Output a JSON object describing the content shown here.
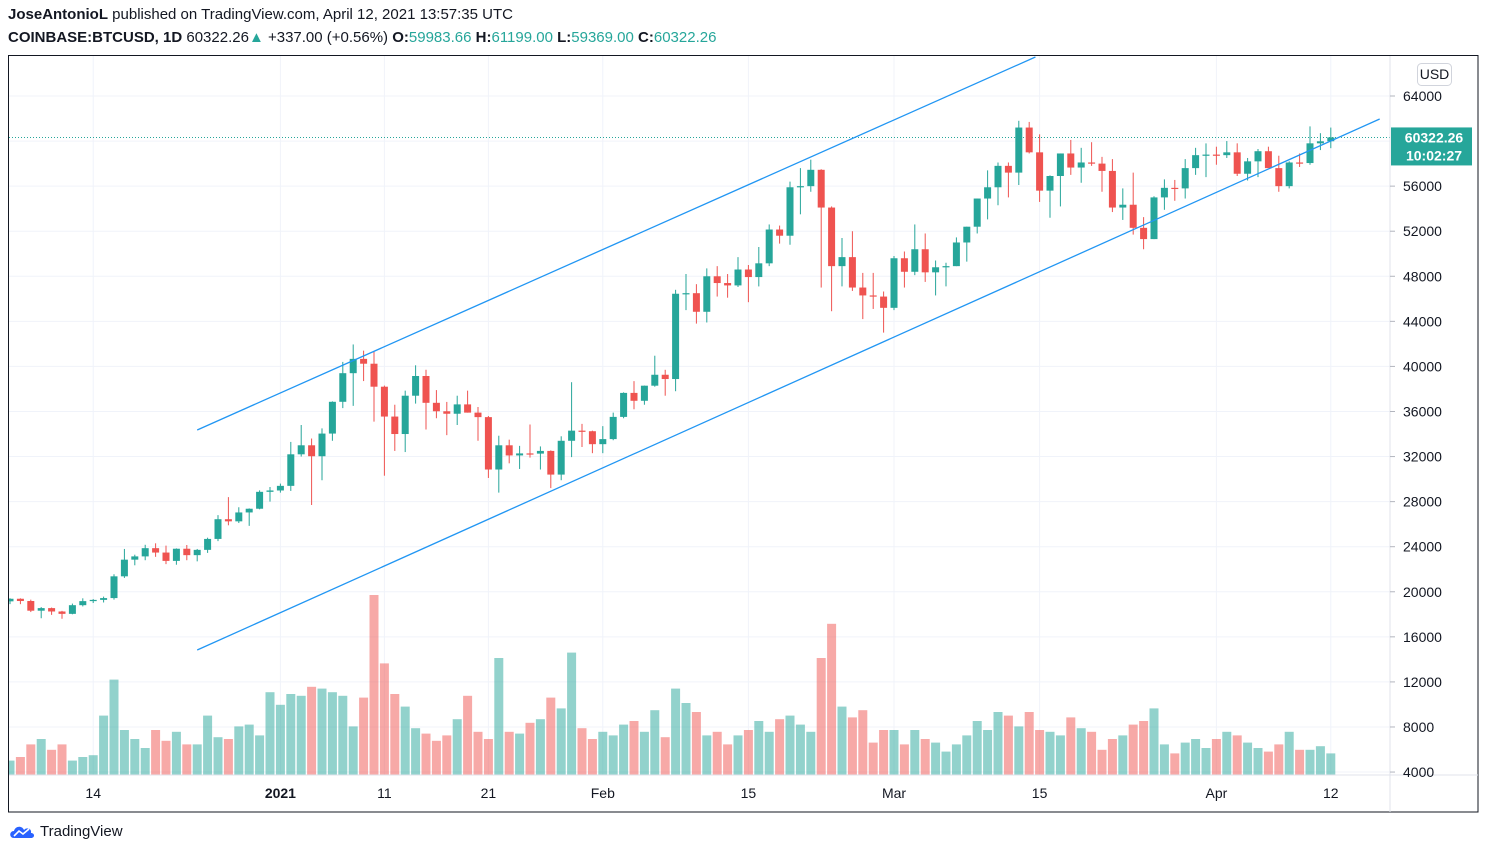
{
  "header": {
    "author": "JoseAntonioL",
    "published_text": "published on TradingView.com, April 12, 2021 13:57:35 UTC",
    "symbol": "COINBASE:BTCUSD, 1D",
    "last": "60322.26",
    "change": "+337.00 (+0.56%)",
    "o_label": "O:",
    "o": "59983.66",
    "h_label": "H:",
    "h": "61199.00",
    "l_label": "L:",
    "l": "59369.00",
    "c_label": "C:",
    "c": "60322.26"
  },
  "price_axis": {
    "currency": "USD",
    "last_price": "60322.26",
    "countdown": "10:02:27"
  },
  "logo": {
    "text": "TradingView"
  },
  "colors": {
    "up": "#26a69a",
    "down": "#ef5350",
    "trendline": "#2196f3",
    "volume_up": "#26a69a",
    "volume_down": "#ef5350"
  },
  "chart_data": {
    "type": "candlestick",
    "interval": "1D",
    "start_date": "2020-12-06",
    "ylim": [
      4000,
      66000
    ],
    "grid": true,
    "y_ticks": [
      "64000",
      "56000",
      "52000",
      "48000",
      "44000",
      "40000",
      "36000",
      "32000",
      "28000",
      "24000",
      "20000",
      "16000",
      "12000",
      "8000",
      "4000"
    ],
    "x_ticks": [
      {
        "label": "14",
        "date": "2020-12-14",
        "bold": false
      },
      {
        "label": "2021",
        "date": "2021-01-01",
        "bold": true
      },
      {
        "label": "11",
        "date": "2021-01-11",
        "bold": false
      },
      {
        "label": "21",
        "date": "2021-01-21",
        "bold": false
      },
      {
        "label": "Feb",
        "date": "2021-02-01",
        "bold": false
      },
      {
        "label": "15",
        "date": "2021-02-15",
        "bold": false
      },
      {
        "label": "Mar",
        "date": "2021-03-01",
        "bold": false
      },
      {
        "label": "15",
        "date": "2021-03-15",
        "bold": false
      },
      {
        "label": "Apr",
        "date": "2021-04-01",
        "bold": false
      },
      {
        "label": "12",
        "date": "2021-04-12",
        "bold": false
      }
    ],
    "last_price": 60322.26,
    "trendlines": [
      {
        "from": {
          "date": "2020-12-24",
          "price": 34360
        },
        "to": {
          "date": "2021-03-14.6",
          "price": 67460
        }
      },
      {
        "from": {
          "date": "2020-12-24",
          "price": 14830
        },
        "to": {
          "date": "2021-04-16.7",
          "price": 61960
        }
      }
    ],
    "ohlc": [
      [
        19150,
        19420,
        18900,
        19380
      ],
      [
        19380,
        19420,
        18900,
        19180
      ],
      [
        19180,
        19300,
        18200,
        18320
      ],
      [
        18320,
        18640,
        17650,
        18550
      ],
      [
        18550,
        18600,
        17950,
        18250
      ],
      [
        18250,
        18300,
        17600,
        18040
      ],
      [
        18040,
        18950,
        18000,
        18810
      ],
      [
        18810,
        19420,
        18700,
        19170
      ],
      [
        19170,
        19350,
        19000,
        19280
      ],
      [
        19280,
        19570,
        19050,
        19440
      ],
      [
        19440,
        21560,
        19300,
        21370
      ],
      [
        21370,
        23800,
        21230,
        22850
      ],
      [
        22850,
        23290,
        22350,
        23140
      ],
      [
        23140,
        24170,
        22800,
        23870
      ],
      [
        23870,
        24300,
        23100,
        23480
      ],
      [
        23480,
        24100,
        22450,
        22740
      ],
      [
        22740,
        23850,
        22400,
        23820
      ],
      [
        23820,
        24150,
        22800,
        23250
      ],
      [
        23250,
        23800,
        22700,
        23720
      ],
      [
        23720,
        24800,
        23450,
        24690
      ],
      [
        24690,
        26800,
        24500,
        26440
      ],
      [
        26440,
        28400,
        25900,
        26250
      ],
      [
        26250,
        27500,
        26100,
        27040
      ],
      [
        27040,
        27400,
        25850,
        27370
      ],
      [
        27370,
        29000,
        27320,
        28870
      ],
      [
        28870,
        29300,
        28000,
        28990
      ],
      [
        28990,
        29600,
        28800,
        29400
      ],
      [
        29400,
        33300,
        28950,
        32200
      ],
      [
        32200,
        34800,
        32000,
        33000
      ],
      [
        33000,
        33600,
        27700,
        32030
      ],
      [
        32030,
        34500,
        29900,
        34040
      ],
      [
        34040,
        36900,
        33400,
        36860
      ],
      [
        36860,
        40400,
        36300,
        39400
      ],
      [
        39400,
        41950,
        36500,
        40670
      ],
      [
        40670,
        41400,
        38700,
        40240
      ],
      [
        40240,
        41350,
        35100,
        38200
      ],
      [
        38200,
        38300,
        30300,
        35550
      ],
      [
        35550,
        36600,
        32500,
        34000
      ],
      [
        34000,
        37850,
        32400,
        37400
      ],
      [
        37400,
        40100,
        36700,
        39150
      ],
      [
        39150,
        39700,
        34400,
        36770
      ],
      [
        36770,
        37900,
        35400,
        36020
      ],
      [
        36020,
        36850,
        33900,
        35800
      ],
      [
        35800,
        37400,
        34800,
        36630
      ],
      [
        36630,
        37850,
        35900,
        35900
      ],
      [
        35900,
        36400,
        33400,
        35500
      ],
      [
        35500,
        35600,
        30100,
        30850
      ],
      [
        30850,
        33850,
        28800,
        33000
      ],
      [
        33000,
        33500,
        31400,
        32100
      ],
      [
        32100,
        32950,
        30900,
        32280
      ],
      [
        32280,
        34850,
        31900,
        32260
      ],
      [
        32260,
        32900,
        30850,
        32500
      ],
      [
        32500,
        32550,
        29200,
        30400
      ],
      [
        30400,
        33800,
        29900,
        33400
      ],
      [
        33400,
        38600,
        31950,
        34300
      ],
      [
        34300,
        34900,
        32850,
        34250
      ],
      [
        34250,
        34300,
        32300,
        33100
      ],
      [
        33100,
        34700,
        32300,
        33550
      ],
      [
        33550,
        35900,
        33450,
        35520
      ],
      [
        35520,
        37700,
        35400,
        37650
      ],
      [
        37650,
        38700,
        36200,
        36950
      ],
      [
        36950,
        38300,
        36600,
        38290
      ],
      [
        38290,
        40950,
        38200,
        39260
      ],
      [
        39260,
        39700,
        37400,
        38880
      ],
      [
        38880,
        46800,
        37800,
        46450
      ],
      [
        46450,
        48200,
        45000,
        46500
      ],
      [
        46500,
        47300,
        43800,
        44850
      ],
      [
        44850,
        48700,
        43900,
        48000
      ],
      [
        48000,
        48900,
        46200,
        47400
      ],
      [
        47400,
        48200,
        46100,
        47190
      ],
      [
        47190,
        49700,
        47050,
        48600
      ],
      [
        48600,
        49000,
        45700,
        47930
      ],
      [
        47930,
        50600,
        47100,
        49150
      ],
      [
        49150,
        52600,
        48900,
        52150
      ],
      [
        52150,
        52500,
        50900,
        51600
      ],
      [
        51600,
        56400,
        50800,
        55900
      ],
      [
        55900,
        57600,
        53500,
        56000
      ],
      [
        56000,
        58350,
        55500,
        57450
      ],
      [
        57450,
        57500,
        47000,
        54100
      ],
      [
        54100,
        54200,
        44900,
        48900
      ],
      [
        48900,
        51400,
        47100,
        49700
      ],
      [
        49700,
        52000,
        46700,
        47000
      ],
      [
        47000,
        48300,
        44200,
        46300
      ],
      [
        46300,
        48300,
        45100,
        46200
      ],
      [
        46200,
        46650,
        43000,
        45200
      ],
      [
        45200,
        49800,
        45000,
        49600
      ],
      [
        49600,
        50200,
        47000,
        48400
      ],
      [
        48400,
        52600,
        48100,
        50400
      ],
      [
        50400,
        51800,
        47500,
        48350
      ],
      [
        48350,
        49400,
        46300,
        48800
      ],
      [
        48800,
        49200,
        47100,
        48900
      ],
      [
        48900,
        51450,
        48900,
        51000
      ],
      [
        51000,
        52400,
        49300,
        52400
      ],
      [
        52400,
        54900,
        51800,
        54900
      ],
      [
        54900,
        57400,
        53050,
        55900
      ],
      [
        55900,
        58100,
        54300,
        57800
      ],
      [
        57800,
        58100,
        55000,
        57200
      ],
      [
        57200,
        61800,
        56100,
        61200
      ],
      [
        61200,
        61700,
        58900,
        59000
      ],
      [
        59000,
        60600,
        54600,
        55600
      ],
      [
        55600,
        56950,
        53200,
        56900
      ],
      [
        56900,
        58900,
        54200,
        58900
      ],
      [
        58900,
        60100,
        57000,
        57650
      ],
      [
        57650,
        59400,
        56300,
        58100
      ],
      [
        58100,
        59900,
        57800,
        58000
      ],
      [
        58000,
        58600,
        55500,
        57350
      ],
      [
        57350,
        58400,
        53700,
        54100
      ],
      [
        54100,
        55800,
        53000,
        54350
      ],
      [
        54350,
        57200,
        51700,
        52300
      ],
      [
        52300,
        53250,
        50400,
        51300
      ],
      [
        51300,
        55100,
        51300,
        55000
      ],
      [
        55000,
        56600,
        53900,
        55850
      ],
      [
        55850,
        56550,
        54700,
        55800
      ],
      [
        55800,
        58400,
        54900,
        57600
      ],
      [
        57600,
        59400,
        57000,
        58750
      ],
      [
        58750,
        59800,
        56800,
        58800
      ],
      [
        58800,
        59500,
        57900,
        58750
      ],
      [
        58750,
        60000,
        58500,
        59000
      ],
      [
        59000,
        59800,
        56900,
        57100
      ],
      [
        57100,
        58500,
        56500,
        58200
      ],
      [
        58200,
        59300,
        56800,
        59100
      ],
      [
        59100,
        59500,
        57700,
        57600
      ],
      [
        57600,
        58700,
        55500,
        56000
      ],
      [
        56000,
        58200,
        55800,
        58100
      ],
      [
        58100,
        58900,
        57700,
        58050
      ],
      [
        58050,
        61300,
        57900,
        59800
      ],
      [
        59800,
        60700,
        59200,
        59980
      ],
      [
        59983.66,
        61199,
        59369,
        60322.26
      ]
    ],
    "volume_relative": [
      8,
      10,
      17,
      20,
      14,
      17,
      8,
      10,
      11,
      33,
      53,
      25,
      20,
      15,
      25,
      19,
      24,
      17,
      17,
      33,
      21,
      20,
      27,
      28,
      22,
      46,
      39,
      45,
      44,
      49,
      48,
      46,
      44,
      27,
      43,
      100,
      62,
      45,
      38,
      26,
      23,
      19,
      22,
      31,
      44,
      24,
      20,
      65,
      24,
      23,
      29,
      31,
      43,
      37,
      68,
      26,
      20,
      24,
      22,
      28,
      30,
      24,
      36,
      21,
      48,
      40,
      35,
      22,
      24,
      17,
      22,
      25,
      30,
      24,
      31,
      33,
      28,
      24,
      65,
      84,
      38,
      32,
      36,
      18,
      25,
      25,
      17,
      25,
      20,
      18,
      13,
      17,
      22,
      30,
      25,
      35,
      33,
      27,
      35,
      25,
      24,
      22,
      32,
      26,
      24,
      14,
      20,
      22,
      28,
      30,
      37,
      17,
      12,
      18,
      20,
      15,
      20,
      24,
      22,
      18,
      15,
      13,
      17,
      24,
      14,
      14,
      16,
      12
    ]
  }
}
